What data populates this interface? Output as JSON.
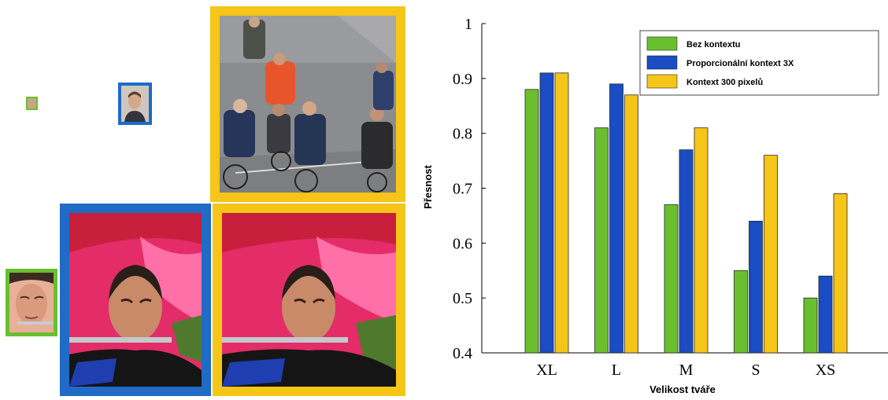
{
  "colors": {
    "green": "#6abf2e",
    "blue": "#1a4cc4",
    "yellow": "#f5c518",
    "frame_blue": "#1f6bc6",
    "frame_yellow": "#f5c518",
    "frame_green": "#6abf2e"
  },
  "chart_data": {
    "type": "bar",
    "categories": [
      "XL",
      "L",
      "M",
      "S",
      "XS"
    ],
    "series": [
      {
        "name": "Bez kontextu",
        "values": [
          0.88,
          0.81,
          0.67,
          0.55,
          0.5
        ],
        "color": "#6abf2e"
      },
      {
        "name": "Proporcionální kontext 3X",
        "values": [
          0.91,
          0.89,
          0.77,
          0.64,
          0.54
        ],
        "color": "#1a4cc4"
      },
      {
        "name": "Kontext 300 pixelů",
        "values": [
          0.91,
          0.87,
          0.81,
          0.76,
          0.69
        ],
        "color": "#f5c518"
      }
    ],
    "xlabel": "Velikost tváře",
    "ylabel": "Přesnost",
    "ylim": [
      0.4,
      1.0
    ],
    "yticks": [
      "0.4",
      "0.5",
      "0.6",
      "0.7",
      "0.8",
      "0.9",
      "1"
    ],
    "legend_position": "top-right",
    "grid": false
  },
  "left_figure": {
    "top_panel": {
      "description_icons": [
        "tiny-face-thumbnail-icon",
        "face-crop-icon",
        "cyclists-photo-icon"
      ]
    },
    "bottom_panel": {
      "description_icons": [
        "flute-face-crop-icon",
        "flute-context-3x-icon",
        "flute-context-300px-icon"
      ]
    }
  }
}
